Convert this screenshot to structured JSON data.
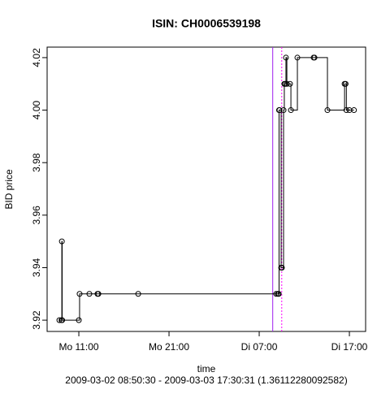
{
  "chart_data": {
    "type": "step",
    "title": "ISIN: CH0006539198",
    "xlabel": "time",
    "ylabel": "BID price",
    "subtitle": "2009-03-02 08:50:30 - 2009-03-03 17:30:31 (1.36112280092582)",
    "x": [
      "2009-03-02 08:50:30",
      "2009-03-02 09:05",
      "2009-03-02 09:07",
      "2009-03-02 09:09",
      "2009-03-02 11:00",
      "2009-03-02 11:05",
      "2009-03-02 12:10",
      "2009-03-02 13:04",
      "2009-03-02 13:10",
      "2009-03-02 17:35",
      "2009-03-03 08:53",
      "2009-03-03 09:04",
      "2009-03-03 09:10",
      "2009-03-03 09:12",
      "2009-03-03 09:15",
      "2009-03-03 09:26",
      "2009-03-03 09:31",
      "2009-03-03 09:42",
      "2009-03-03 09:47",
      "2009-03-03 09:53",
      "2009-03-03 09:58",
      "2009-03-03 10:04",
      "2009-03-03 10:25",
      "2009-03-03 10:31",
      "2009-03-03 11:14",
      "2009-03-03 13:02",
      "2009-03-03 13:08",
      "2009-03-03 14:34",
      "2009-03-03 16:28",
      "2009-03-03 16:35",
      "2009-03-03 16:40",
      "2009-03-03 17:00",
      "2009-03-03 17:30:31"
    ],
    "values": [
      3.92,
      3.92,
      3.95,
      3.92,
      3.92,
      3.93,
      3.93,
      3.93,
      3.93,
      3.93,
      3.93,
      3.93,
      3.93,
      4.0,
      4.0,
      3.94,
      3.94,
      4.0,
      4.01,
      4.01,
      4.02,
      4.01,
      4.01,
      4.0,
      4.02,
      4.02,
      4.02,
      4.0,
      4.01,
      4.01,
      4.0,
      4.0,
      4.0
    ],
    "color": "#000000",
    "xlim": [
      "2009-03-02 07:29",
      "2009-03-03 18:48"
    ],
    "xticks": [
      {
        "value": "2009-03-02 11:00",
        "label": "Mo 11:00"
      },
      {
        "value": "2009-03-02 21:00",
        "label": "Mo 21:00"
      },
      {
        "value": "2009-03-03 07:00",
        "label": "Di 07:00"
      },
      {
        "value": "2009-03-03 17:00",
        "label": "Di 17:00"
      }
    ],
    "ylim": [
      3.9157,
      4.024
    ],
    "yticks": [
      3.92,
      3.94,
      3.96,
      3.98,
      {
        "value": 4.0,
        "label": "4.00"
      },
      4.02
    ],
    "vlines": [
      {
        "x": "2009-03-03 08:30",
        "color": "#a020f0",
        "style": "solid"
      },
      {
        "x": "2009-03-03 09:30",
        "color": "#ff00ff",
        "style": "dotted"
      }
    ]
  }
}
